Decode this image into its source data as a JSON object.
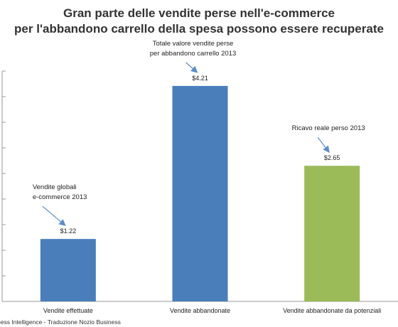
{
  "title_line1": "Gran parte delle vendite perse nell'e-commerce",
  "title_line2": "per l'abbandono carrello della spesa possono essere recuperate",
  "source": "ness Intelligence - Traduzione Nozio Business",
  "colors": {
    "bar_blue": "#4a7ebb",
    "bar_green": "#9bbb59",
    "annotation": "#5b8ec9",
    "axis": "#9a9a9a"
  },
  "chart_data": {
    "type": "bar",
    "categories": [
      "Vendite effettuate",
      "Vendite abbandonate",
      "Vendite abbandonate da potenziali"
    ],
    "values": [
      1.22,
      4.21,
      2.65
    ],
    "value_labels": [
      "$1.22",
      "$4.21",
      "$2.65"
    ],
    "bar_colors": [
      "#4a7ebb",
      "#4a7ebb",
      "#9bbb59"
    ],
    "ylim": [
      0,
      4.5
    ],
    "annotations": [
      {
        "bar": 0,
        "lines": [
          "Vendite globali",
          "e-commerce 2013"
        ]
      },
      {
        "bar": 1,
        "lines": [
          "Totale valore vendite perse",
          "per abbandono carrello 2013"
        ]
      },
      {
        "bar": 2,
        "lines": [
          "Ricavo reale perso 2013"
        ]
      }
    ]
  }
}
